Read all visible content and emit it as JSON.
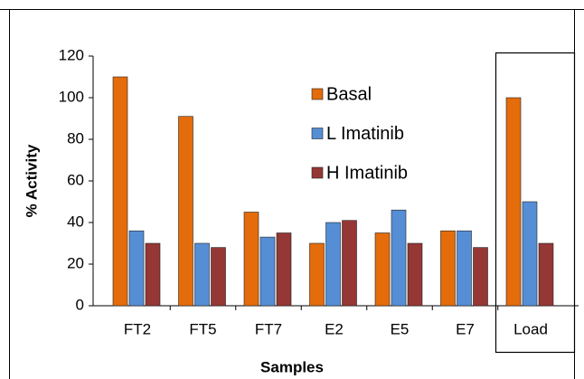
{
  "chart_data": {
    "type": "bar",
    "x_label": "Samples",
    "y_label": "% Activity",
    "categories": [
      "FT2",
      "FT5",
      "FT7",
      "E2",
      "E5",
      "E7",
      "Load"
    ],
    "series": [
      {
        "name": "Basal",
        "color": "#e46c0a",
        "values": [
          110,
          91,
          45,
          30,
          35,
          36,
          100
        ]
      },
      {
        "name": "L Imatinib",
        "color": "#558ed5",
        "values": [
          36,
          30,
          33,
          40,
          46,
          36,
          50
        ]
      },
      {
        "name": "H Imatinib",
        "color": "#953735",
        "values": [
          30,
          28,
          35,
          41,
          30,
          28,
          30
        ]
      }
    ],
    "ylim": [
      0,
      120
    ],
    "yticks": [
      0,
      20,
      40,
      60,
      80,
      100,
      120
    ],
    "grid": false
  }
}
